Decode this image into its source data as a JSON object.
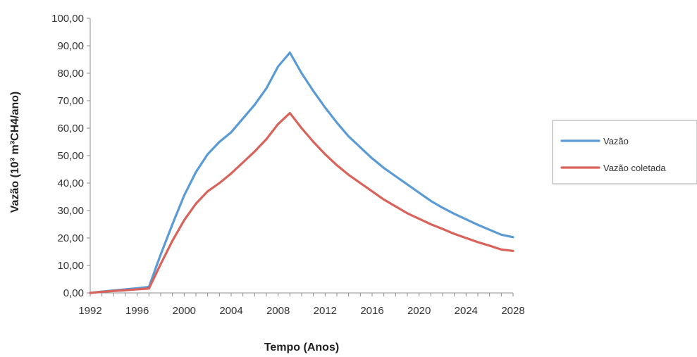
{
  "chart_data": {
    "type": "line",
    "title": "",
    "xlabel": "Tempo (Anos)",
    "ylabel": "Vazão (10³ m³CH4/ano)",
    "xlim": [
      1992,
      2028
    ],
    "ylim": [
      0,
      100
    ],
    "x_ticks": [
      1992,
      1996,
      2000,
      2004,
      2008,
      2012,
      2016,
      2020,
      2024,
      2028
    ],
    "x_tick_labels": [
      "1992",
      "1996",
      "2000",
      "2004",
      "2008",
      "2012",
      "2016",
      "2020",
      "2024",
      "2028"
    ],
    "y_ticks": [
      0,
      10,
      20,
      30,
      40,
      50,
      60,
      70,
      80,
      90,
      100
    ],
    "y_tick_labels": [
      "0,00",
      "10,00",
      "20,00",
      "30,00",
      "40,00",
      "50,00",
      "60,00",
      "70,00",
      "80,00",
      "90,00",
      "100,00"
    ],
    "grid": false,
    "legend": "right",
    "x": [
      1992,
      1993,
      1994,
      1995,
      1996,
      1997,
      1998,
      1999,
      2000,
      2001,
      2002,
      2003,
      2004,
      2005,
      2006,
      2007,
      2008,
      2009,
      2010,
      2011,
      2012,
      2013,
      2014,
      2015,
      2016,
      2017,
      2018,
      2019,
      2020,
      2021,
      2022,
      2023,
      2024,
      2025,
      2026,
      2027,
      2028
    ],
    "series": [
      {
        "name": "Vazão",
        "color": "#5b9bd5",
        "values": [
          0.0,
          0.5,
          0.9,
          1.3,
          1.7,
          2.2,
          14.0,
          25.0,
          35.5,
          44.0,
          50.5,
          55.0,
          58.5,
          63.5,
          68.5,
          74.5,
          82.5,
          87.5,
          80.0,
          73.5,
          67.5,
          62.0,
          57.0,
          53.0,
          49.0,
          45.5,
          42.5,
          39.5,
          36.5,
          33.5,
          31.0,
          28.8,
          26.8,
          24.8,
          23.0,
          21.2,
          20.3
        ]
      },
      {
        "name": "Vazão coletada",
        "color": "#d9625a",
        "values": [
          0.0,
          0.4,
          0.7,
          1.0,
          1.3,
          1.6,
          10.5,
          19.0,
          26.5,
          32.5,
          37.0,
          40.0,
          43.5,
          47.5,
          51.5,
          56.0,
          61.5,
          65.5,
          60.0,
          55.0,
          50.5,
          46.5,
          43.0,
          40.0,
          37.0,
          34.0,
          31.5,
          29.0,
          27.0,
          25.0,
          23.3,
          21.5,
          20.0,
          18.5,
          17.2,
          15.8,
          15.3
        ]
      }
    ]
  }
}
